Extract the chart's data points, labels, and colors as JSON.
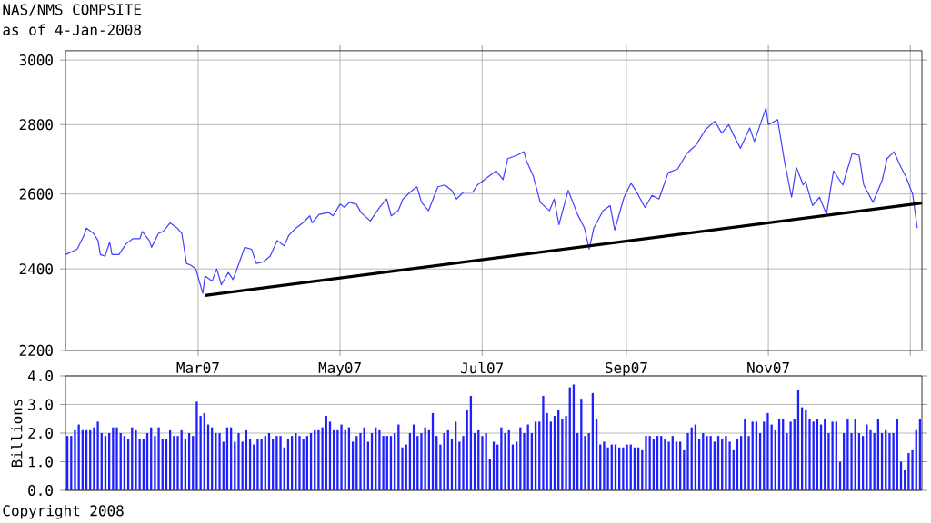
{
  "chart_data": [
    {
      "type": "line",
      "title": "NAS/NMS COMPSITE",
      "subtitle": "as of 4-Jan-2008",
      "log": "y",
      "grid": true,
      "xlim": [
        "2007-01-03",
        "2008-01-06"
      ],
      "ylim": [
        2200,
        3030
      ],
      "xticks": [
        {
          "value": "2007-03-01",
          "label": "Mar07"
        },
        {
          "value": "2007-05-01",
          "label": "May07"
        },
        {
          "value": "2007-07-01",
          "label": "Jul07"
        },
        {
          "value": "2007-09-01",
          "label": "Sep07"
        },
        {
          "value": "2007-11-01",
          "label": "Nov07"
        },
        {
          "value": "2008-01-01",
          "label": null
        }
      ],
      "yticks": [
        2200,
        2400,
        2600,
        2800,
        3000
      ],
      "series": [
        {
          "color": "#4040ff",
          "x": [
            "2007-01-03",
            "2007-01-08",
            "2007-01-11",
            "2007-01-12",
            "2007-01-15",
            "2007-01-17",
            "2007-01-18",
            "2007-01-20",
            "2007-01-22",
            "2007-01-23",
            "2007-01-26",
            "2007-01-29",
            "2007-02-01",
            "2007-02-04",
            "2007-02-05",
            "2007-02-08",
            "2007-02-09",
            "2007-02-12",
            "2007-02-14",
            "2007-02-17",
            "2007-02-20",
            "2007-02-22",
            "2007-02-24",
            "2007-02-26",
            "2007-02-28",
            "2007-03-03",
            "2007-03-04",
            "2007-03-07",
            "2007-03-09",
            "2007-03-11",
            "2007-03-14",
            "2007-03-16",
            "2007-03-18",
            "2007-03-21",
            "2007-03-24",
            "2007-03-26",
            "2007-03-29",
            "2007-04-01",
            "2007-04-04",
            "2007-04-07",
            "2007-04-09",
            "2007-04-12",
            "2007-04-15",
            "2007-04-18",
            "2007-04-19",
            "2007-04-22",
            "2007-04-26",
            "2007-04-28",
            "2007-05-01",
            "2007-05-03",
            "2007-05-05",
            "2007-05-08",
            "2007-05-10",
            "2007-05-14",
            "2007-05-18",
            "2007-05-21",
            "2007-05-23",
            "2007-05-26",
            "2007-05-28",
            "2007-06-01",
            "2007-06-03",
            "2007-06-05",
            "2007-06-08",
            "2007-06-12",
            "2007-06-15",
            "2007-06-18",
            "2007-06-20",
            "2007-06-23",
            "2007-06-27",
            "2007-06-29",
            "2007-07-07",
            "2007-07-10",
            "2007-07-12",
            "2007-07-16",
            "2007-07-19",
            "2007-07-20",
            "2007-07-23",
            "2007-07-26",
            "2007-07-30",
            "2007-08-01",
            "2007-08-03",
            "2007-08-07",
            "2007-08-11",
            "2007-08-14",
            "2007-08-16",
            "2007-08-18",
            "2007-08-22",
            "2007-08-25",
            "2007-08-27",
            "2007-08-31",
            "2007-09-03",
            "2007-09-05",
            "2007-09-09",
            "2007-09-12",
            "2007-09-15",
            "2007-09-19",
            "2007-09-23",
            "2007-09-27",
            "2007-10-01",
            "2007-10-05",
            "2007-10-09",
            "2007-10-12",
            "2007-10-15",
            "2007-10-17",
            "2007-10-20",
            "2007-10-24",
            "2007-10-26",
            "2007-10-29",
            "2007-10-31",
            "2007-11-01",
            "2007-11-05",
            "2007-11-08",
            "2007-11-11",
            "2007-11-13",
            "2007-11-16",
            "2007-11-17",
            "2007-11-20",
            "2007-11-23",
            "2007-11-26",
            "2007-11-29",
            "2007-12-03",
            "2007-12-07",
            "2007-12-10",
            "2007-12-12",
            "2007-12-16",
            "2007-12-20",
            "2007-12-22",
            "2007-12-25",
            "2007-12-28",
            "2007-12-30",
            "2008-01-02",
            "2008-01-04"
          ],
          "values": [
            2437,
            2451,
            2488,
            2507,
            2493,
            2474,
            2437,
            2433,
            2470,
            2437,
            2437,
            2465,
            2479,
            2479,
            2498,
            2474,
            2456,
            2493,
            2498,
            2521,
            2507,
            2493,
            2414,
            2409,
            2400,
            2338,
            2382,
            2369,
            2400,
            2360,
            2391,
            2373,
            2405,
            2456,
            2451,
            2414,
            2418,
            2433,
            2474,
            2460,
            2488,
            2507,
            2521,
            2540,
            2521,
            2544,
            2549,
            2540,
            2572,
            2563,
            2577,
            2572,
            2549,
            2526,
            2563,
            2586,
            2540,
            2554,
            2586,
            2610,
            2620,
            2577,
            2554,
            2620,
            2625,
            2610,
            2586,
            2605,
            2605,
            2625,
            2665,
            2640,
            2700,
            2710,
            2720,
            2695,
            2650,
            2577,
            2554,
            2586,
            2516,
            2610,
            2544,
            2507,
            2451,
            2507,
            2554,
            2568,
            2502,
            2591,
            2630,
            2610,
            2563,
            2596,
            2586,
            2660,
            2670,
            2715,
            2740,
            2785,
            2810,
            2775,
            2800,
            2770,
            2730,
            2790,
            2750,
            2810,
            2850,
            2800,
            2815,
            2690,
            2591,
            2675,
            2625,
            2635,
            2568,
            2591,
            2544,
            2665,
            2625,
            2715,
            2710,
            2625,
            2577,
            2640,
            2700,
            2720,
            2675,
            2650,
            2600,
            2507
          ]
        },
        {
          "type": "line",
          "color": "#000000",
          "x": [
            "2007-03-04",
            "2008-01-06"
          ],
          "values": [
            2333,
            2575
          ]
        }
      ]
    },
    {
      "type": "bar",
      "ylabel": "Billions",
      "grid": "y",
      "tick_labels": "y",
      "color": "#2020ff",
      "ylim": [
        0,
        4
      ],
      "yticks": [
        {
          "value": 0,
          "label": "0.0"
        },
        {
          "value": 1,
          "label": "1.0"
        },
        {
          "value": 2,
          "label": "2.0"
        },
        {
          "value": 3,
          "label": "3.0"
        },
        {
          "value": 4,
          "label": "4.0"
        }
      ],
      "annotations": [
        "Copyright 2008"
      ],
      "categories": [
        null,
        null,
        null,
        null,
        null,
        null,
        null,
        null,
        null,
        null,
        null,
        null,
        null,
        null,
        null,
        null,
        null,
        null,
        null,
        null,
        null,
        null,
        null,
        null,
        null,
        null,
        null,
        null,
        null,
        null,
        null,
        null,
        null,
        null,
        null,
        null,
        null,
        null,
        null,
        null,
        null,
        null,
        null,
        null,
        null,
        null,
        null,
        null,
        null,
        null,
        null,
        null,
        null,
        null,
        null,
        null,
        null,
        null,
        null,
        null,
        null,
        null,
        null,
        null,
        null,
        null,
        null,
        null,
        null,
        null,
        null,
        null,
        null,
        null,
        null,
        null,
        null,
        null,
        null,
        null,
        null,
        null,
        null,
        null,
        null,
        null,
        null,
        null,
        null,
        null,
        null,
        null,
        null,
        null,
        null,
        null,
        null,
        null,
        null,
        null,
        null,
        null,
        null,
        null,
        null,
        null,
        null,
        null,
        null,
        null,
        null,
        null,
        null,
        null,
        null,
        null,
        null,
        null,
        null,
        null,
        null,
        null,
        null,
        null,
        null,
        null,
        null,
        null,
        null,
        null,
        null,
        null,
        null,
        null,
        null,
        null,
        null,
        null,
        null,
        null,
        null,
        null,
        null,
        null,
        null,
        null,
        null,
        null,
        null,
        null,
        null,
        null,
        null,
        null,
        null,
        null,
        null,
        null,
        null,
        null,
        null,
        null,
        null,
        null,
        null,
        null,
        null,
        null,
        null,
        null,
        null,
        null,
        null,
        null,
        null,
        null,
        null,
        null,
        null,
        null,
        null,
        null,
        null,
        null,
        null,
        null,
        null,
        null,
        null,
        null,
        null,
        null,
        null,
        null,
        null,
        null,
        null,
        null,
        null,
        null,
        null,
        null,
        null,
        null,
        null,
        null,
        null,
        null,
        null,
        null,
        null,
        null,
        null,
        null,
        null,
        null,
        null,
        null,
        null,
        null,
        null,
        null,
        null,
        null,
        null
      ],
      "values": [
        1.9,
        1.9,
        2.1,
        2.3,
        2.1,
        2.1,
        2.1,
        2.2,
        2.4,
        2.0,
        1.9,
        2.0,
        2.2,
        2.2,
        2.0,
        1.9,
        1.8,
        2.2,
        2.1,
        1.8,
        1.8,
        2.0,
        2.2,
        1.9,
        2.2,
        1.8,
        1.8,
        2.1,
        1.9,
        1.9,
        2.1,
        1.8,
        2.0,
        1.9,
        3.1,
        2.6,
        2.7,
        2.3,
        2.2,
        2.0,
        2.0,
        1.7,
        2.2,
        2.2,
        1.7,
        2.0,
        1.7,
        2.1,
        1.8,
        1.6,
        1.8,
        1.8,
        1.9,
        2.0,
        1.8,
        1.9,
        1.9,
        1.5,
        1.8,
        1.9,
        2.0,
        1.9,
        1.8,
        1.9,
        2.0,
        2.1,
        2.1,
        2.2,
        2.6,
        2.4,
        2.1,
        2.1,
        2.3,
        2.1,
        2.2,
        1.7,
        1.9,
        2.0,
        2.2,
        1.7,
        2.0,
        2.2,
        2.1,
        1.9,
        1.9,
        1.9,
        2.0,
        2.3,
        1.5,
        1.6,
        2.0,
        2.3,
        1.9,
        2.0,
        2.2,
        2.1,
        2.7,
        1.9,
        1.6,
        2.0,
        2.1,
        1.8,
        2.4,
        1.7,
        1.9,
        2.8,
        3.3,
        2.0,
        2.1,
        1.9,
        2.0,
        1.1,
        1.7,
        1.6,
        2.2,
        2.0,
        2.1,
        1.6,
        1.7,
        2.2,
        2.0,
        2.3,
        2.0,
        2.4,
        2.4,
        3.3,
        2.7,
        2.4,
        2.6,
        2.8,
        2.5,
        2.6,
        3.6,
        3.7,
        2.0,
        3.2,
        1.9,
        2.0,
        3.4,
        2.5,
        1.6,
        1.7,
        1.5,
        1.6,
        1.6,
        1.5,
        1.5,
        1.6,
        1.6,
        1.5,
        1.5,
        1.4,
        1.9,
        1.9,
        1.8,
        1.9,
        1.9,
        1.8,
        1.7,
        1.9,
        1.7,
        1.7,
        1.4,
        2.0,
        2.2,
        2.3,
        1.8,
        2.0,
        1.9,
        1.9,
        1.7,
        1.9,
        1.8,
        1.9,
        1.7,
        1.4,
        1.8,
        1.9,
        2.5,
        1.9,
        2.4,
        2.4,
        2.0,
        2.4,
        2.7,
        2.3,
        2.1,
        2.5,
        2.5,
        2.0,
        2.4,
        2.5,
        3.5,
        2.9,
        2.8,
        2.5,
        2.4,
        2.5,
        2.3,
        2.5,
        2.0,
        2.4,
        2.4,
        1.0,
        2.0,
        2.5,
        2.0,
        2.5,
        2.0,
        1.9,
        2.3,
        2.1,
        2.0,
        2.5,
        2.0,
        2.1,
        2.0,
        2.0,
        2.5,
        1.0,
        0.7,
        1.3,
        1.4,
        2.1,
        2.5
      ]
    }
  ]
}
